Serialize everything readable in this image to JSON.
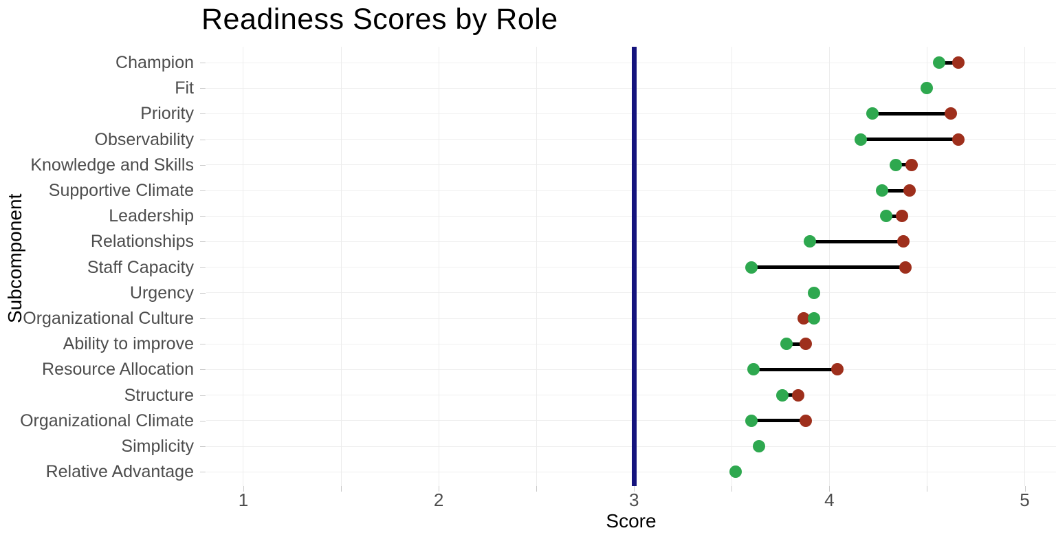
{
  "chart_data": {
    "type": "dumbbell",
    "title": "Readiness Scores by Role",
    "xlabel": "Score",
    "ylabel": "Subcomponent",
    "xlim": [
      0.81,
      5.16
    ],
    "x_major_ticks": [
      1,
      2,
      3,
      4,
      5
    ],
    "x_tick_labels": [
      "1",
      "2",
      "3",
      "4",
      "5"
    ],
    "x_grid_step": 0.5,
    "grid_on": true,
    "legend": "none",
    "reference_line": {
      "x": 3,
      "color": "#14137d"
    },
    "colors": {
      "green_series": "#2ea84f",
      "red_series": "#9e2f1c",
      "connector": "#000000",
      "gridline": "#ececec",
      "tick": "#c9c9c9",
      "axis_text": "#4d4d4d",
      "title_text": "#000000"
    },
    "rows": [
      {
        "label": "Champion",
        "green": 4.56,
        "red": 4.66,
        "green_on_top": false
      },
      {
        "label": "Fit",
        "green": 4.5,
        "red": null,
        "green_on_top": false
      },
      {
        "label": "Priority",
        "green": 4.22,
        "red": 4.62,
        "green_on_top": false
      },
      {
        "label": "Observability",
        "green": 4.16,
        "red": 4.66,
        "green_on_top": false
      },
      {
        "label": "Knowledge and Skills",
        "green": 4.34,
        "red": 4.42,
        "green_on_top": false
      },
      {
        "label": "Supportive Climate",
        "green": 4.27,
        "red": 4.41,
        "green_on_top": false
      },
      {
        "label": "Leadership",
        "green": 4.29,
        "red": 4.37,
        "green_on_top": false
      },
      {
        "label": "Relationships",
        "green": 3.9,
        "red": 4.38,
        "green_on_top": false
      },
      {
        "label": "Staff Capacity",
        "green": 3.6,
        "red": 4.39,
        "green_on_top": false
      },
      {
        "label": "Urgency",
        "green": 3.92,
        "red": null,
        "green_on_top": false
      },
      {
        "label": "Organizational Culture",
        "green": 3.92,
        "red": 3.87,
        "green_on_top": true
      },
      {
        "label": "Ability to improve",
        "green": 3.78,
        "red": 3.88,
        "green_on_top": false
      },
      {
        "label": "Resource Allocation",
        "green": 3.61,
        "red": 4.04,
        "green_on_top": false
      },
      {
        "label": "Structure",
        "green": 3.76,
        "red": 3.84,
        "green_on_top": false
      },
      {
        "label": "Organizational Climate",
        "green": 3.6,
        "red": 3.88,
        "green_on_top": false
      },
      {
        "label": "Simplicity",
        "green": 3.64,
        "red": null,
        "green_on_top": false
      },
      {
        "label": "Relative Advantage",
        "green": 3.52,
        "red": null,
        "green_on_top": false
      }
    ]
  }
}
